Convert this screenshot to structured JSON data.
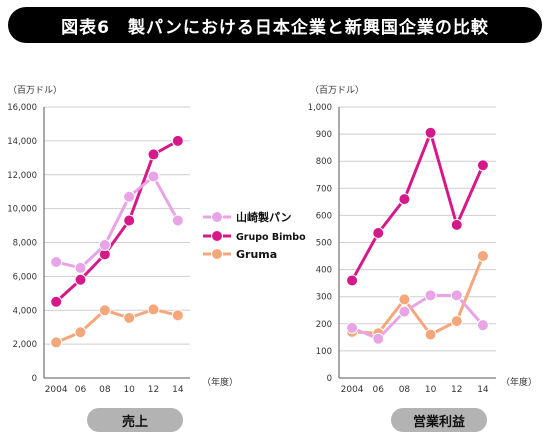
{
  "title": "図表6　製パンにおける日本企業と新興国企業の比較",
  "chart_data": [
    {
      "type": "line",
      "id": "sales",
      "unit_label": "（百万ドル）",
      "xlabel": "（年度）",
      "caption": "売上",
      "x": [
        2004,
        2006,
        2008,
        2010,
        2012,
        2014
      ],
      "x_tick_labels": [
        "2004",
        "06",
        "08",
        "10",
        "12",
        "14"
      ],
      "y_ticks": [
        "0",
        "2,000",
        "4,000",
        "6,000",
        "8,000",
        "10,000",
        "12,000",
        "14,000",
        "16,000"
      ],
      "ylim": [
        0,
        16000
      ],
      "grid": true,
      "series": [
        {
          "name": "山崎製パン",
          "color": "#e8a4e6",
          "values": [
            6850,
            6500,
            7850,
            10700,
            11900,
            9300
          ]
        },
        {
          "name": "Grupo Bimbo",
          "color": "#d6198a",
          "values": [
            4500,
            5800,
            7300,
            9300,
            13200,
            14000
          ]
        },
        {
          "name": "Gruma",
          "color": "#f5a77c",
          "values": [
            2100,
            2700,
            4000,
            3550,
            4050,
            3700
          ]
        }
      ]
    },
    {
      "type": "line",
      "id": "profit",
      "unit_label": "（百万ドル）",
      "xlabel": "（年度）",
      "caption": "営業利益",
      "x": [
        2004,
        2006,
        2008,
        2010,
        2012,
        2014
      ],
      "x_tick_labels": [
        "2004",
        "06",
        "08",
        "10",
        "12",
        "14"
      ],
      "y_ticks": [
        "0",
        "100",
        "200",
        "300",
        "400",
        "500",
        "600",
        "700",
        "800",
        "900",
        "1,000"
      ],
      "ylim": [
        0,
        1000
      ],
      "grid": true,
      "series": [
        {
          "name": "山崎製パン",
          "color": "#e8a4e6",
          "values": [
            185,
            145,
            245,
            305,
            305,
            195
          ]
        },
        {
          "name": "Grupo Bimbo",
          "color": "#d6198a",
          "values": [
            360,
            535,
            660,
            905,
            565,
            785
          ]
        },
        {
          "name": "Gruma",
          "color": "#f5a77c",
          "values": [
            170,
            165,
            290,
            160,
            210,
            450
          ]
        }
      ]
    }
  ],
  "legend": [
    {
      "label": "山崎製パン",
      "color": "#e8a4e6"
    },
    {
      "label": "Grupo Bimbo",
      "color": "#d6198a"
    },
    {
      "label": "Gruma",
      "color": "#f5a77c"
    }
  ]
}
